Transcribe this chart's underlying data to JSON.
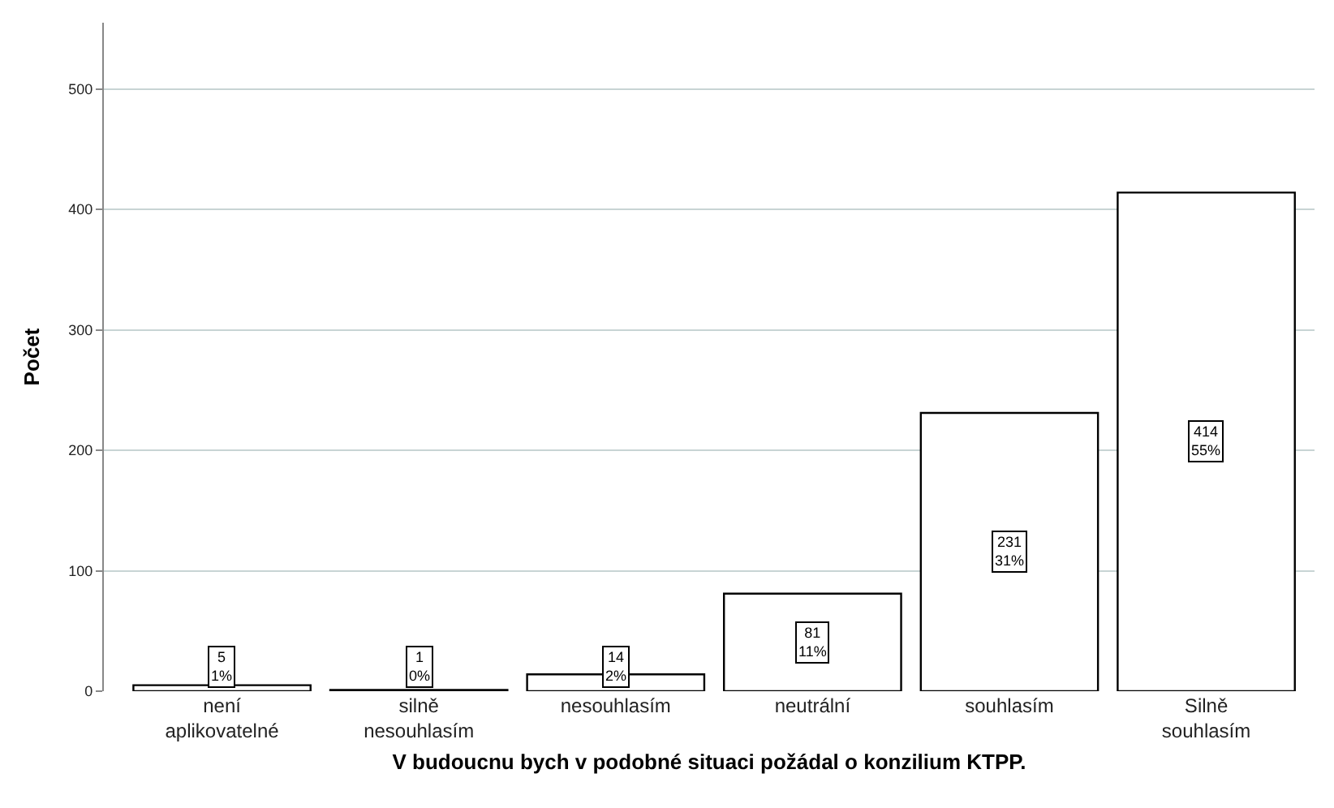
{
  "chart_data": {
    "type": "bar",
    "xlabel": "V budoucnu bych v podobné situaci požádal o konzilium KTPP.",
    "ylabel": "Počet",
    "categories": [
      "není aplikovatelné",
      "silně nesouhlasím",
      "nesouhlasím",
      "neutrální",
      "souhlasím",
      "Silně souhlasím"
    ],
    "values": [
      5,
      1,
      14,
      81,
      231,
      414
    ],
    "value_labels": [
      "5\n1%",
      "1\n0%",
      "14\n2%",
      "81\n11%",
      "231\n31%",
      "414\n55%"
    ],
    "color": "#ffffff",
    "ylim": [
      0,
      555
    ],
    "yticks": [
      0,
      100,
      200,
      300,
      400,
      500
    ],
    "grid": "y",
    "legend": false
  }
}
